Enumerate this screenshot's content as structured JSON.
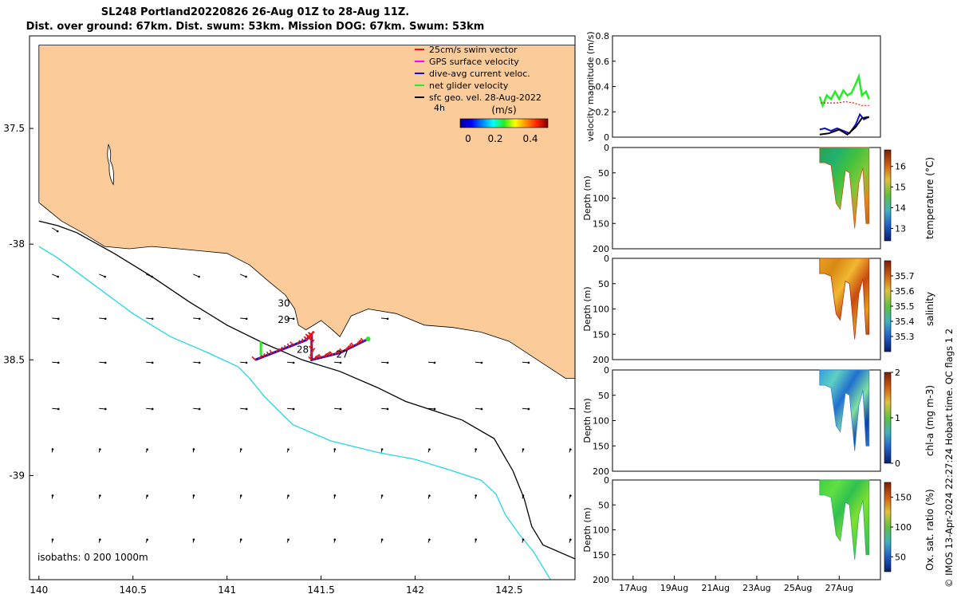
{
  "header": {
    "title_line1": "SL248 Portland20220826 26-Aug 01Z to 28-Aug 11Z.",
    "title_line2": "Dist. over ground: 67km. Dist. swum: 53km. Mission DOG: 67km. Swum: 53km"
  },
  "credit": "© IMOS 13-Apr-2024 22:27:24 Hobart time. QC flags 1  2",
  "colors": {
    "land": "#fbcc9a",
    "sea": "#ffffff",
    "isobath_200": "#000000",
    "isobath_1000": "#22d8e4",
    "swim": "#ee1111",
    "gps": "#ff00ff",
    "dive": "#1010cc",
    "net": "#22ee22",
    "geo": "#000000"
  },
  "chart_data": [
    {
      "type": "map",
      "name": "track-map",
      "xlim": [
        139.95,
        142.85
      ],
      "ylim": [
        -39.45,
        -37.1
      ],
      "x_ticks": [
        140,
        140.5,
        141,
        141.5,
        142,
        142.5
      ],
      "x_tick_labels": [
        "140",
        "140.5",
        "141",
        "141.5",
        "142",
        "142.5"
      ],
      "y_ticks": [
        -37.5,
        -38,
        -38.5,
        -39
      ],
      "y_tick_labels": [
        "37.5",
        "-38",
        "38.5",
        "-39"
      ],
      "legend": {
        "placement": "top-right",
        "items": [
          {
            "label": "25cm/s swim vector",
            "color": "#ee1111"
          },
          {
            "label": "GPS surface velocity",
            "color": "#ff00ff"
          },
          {
            "label": "dive-avg current veloc.",
            "color": "#1010cc"
          },
          {
            "label": "net glider velocity",
            "color": "#22ee22"
          },
          {
            "label": "sfc geo. vel. 28-Aug-2022",
            "color": "#000000"
          }
        ],
        "time_step_label": "4h"
      },
      "colorbar": {
        "title": "(m/s)",
        "range": [
          0,
          0.5
        ],
        "tick_labels": [
          "0",
          "0.2",
          "0.4"
        ]
      },
      "isobaths_label": "isobaths: 0   200  1000m",
      "day_labels": [
        {
          "text": "30",
          "lon": 141.27,
          "lat": -38.27
        },
        {
          "text": "29",
          "lon": 141.27,
          "lat": -38.34
        },
        {
          "text": "28",
          "lon": 141.37,
          "lat": -38.47
        },
        {
          "text": "27",
          "lon": 141.58,
          "lat": -38.49
        }
      ],
      "track": [
        [
          141.15,
          -38.5
        ],
        [
          141.42,
          -38.415
        ],
        [
          141.45,
          -38.39
        ],
        [
          141.45,
          -38.5
        ],
        [
          141.6,
          -38.47
        ],
        [
          141.75,
          -38.41
        ]
      ],
      "coastline": [
        [
          140.0,
          -37.14
        ],
        [
          140.0,
          -37.82
        ],
        [
          140.12,
          -37.9
        ],
        [
          140.23,
          -37.95
        ],
        [
          140.35,
          -38.01
        ],
        [
          140.48,
          -38.02
        ],
        [
          140.6,
          -38.01
        ],
        [
          140.74,
          -38.02
        ],
        [
          140.87,
          -38.03
        ],
        [
          141.0,
          -38.04
        ],
        [
          141.12,
          -38.09
        ],
        [
          141.22,
          -38.16
        ],
        [
          141.31,
          -38.22
        ],
        [
          141.36,
          -38.28
        ],
        [
          141.38,
          -38.35
        ],
        [
          141.42,
          -38.37
        ],
        [
          141.5,
          -38.33
        ],
        [
          141.56,
          -38.37
        ],
        [
          141.6,
          -38.4
        ],
        [
          141.66,
          -38.31
        ],
        [
          141.75,
          -38.28
        ],
        [
          141.9,
          -38.3
        ],
        [
          142.05,
          -38.35
        ],
        [
          142.2,
          -38.36
        ],
        [
          142.35,
          -38.38
        ],
        [
          142.5,
          -38.42
        ],
        [
          142.65,
          -38.5
        ],
        [
          142.8,
          -38.58
        ],
        [
          142.85,
          -38.58
        ],
        [
          142.85,
          -37.14
        ]
      ],
      "isobath_200": [
        [
          140.0,
          -37.9
        ],
        [
          140.1,
          -37.92
        ],
        [
          140.2,
          -37.95
        ],
        [
          140.4,
          -38.04
        ],
        [
          140.6,
          -38.14
        ],
        [
          140.8,
          -38.25
        ],
        [
          141.0,
          -38.35
        ],
        [
          141.2,
          -38.43
        ],
        [
          141.4,
          -38.5
        ],
        [
          141.6,
          -38.55
        ],
        [
          141.8,
          -38.62
        ],
        [
          141.95,
          -38.68
        ],
        [
          142.1,
          -38.72
        ],
        [
          142.25,
          -38.76
        ],
        [
          142.42,
          -38.84
        ],
        [
          142.52,
          -38.98
        ],
        [
          142.58,
          -39.1
        ],
        [
          142.62,
          -39.22
        ],
        [
          142.68,
          -39.3
        ],
        [
          142.85,
          -39.36
        ]
      ],
      "isobath_1000": [
        [
          140.0,
          -38.01
        ],
        [
          140.1,
          -38.06
        ],
        [
          140.25,
          -38.15
        ],
        [
          140.5,
          -38.3
        ],
        [
          140.7,
          -38.4
        ],
        [
          140.9,
          -38.47
        ],
        [
          141.06,
          -38.53
        ],
        [
          141.12,
          -38.58
        ],
        [
          141.2,
          -38.66
        ],
        [
          141.35,
          -38.78
        ],
        [
          141.55,
          -38.85
        ],
        [
          141.8,
          -38.9
        ],
        [
          142.0,
          -38.93
        ],
        [
          142.2,
          -38.98
        ],
        [
          142.35,
          -39.02
        ],
        [
          142.43,
          -39.08
        ],
        [
          142.48,
          -39.17
        ],
        [
          142.55,
          -39.25
        ],
        [
          142.63,
          -39.33
        ],
        [
          142.72,
          -39.45
        ]
      ],
      "current_arrows": {
        "lons": [
          140.07,
          140.32,
          140.57,
          140.82,
          141.07,
          141.32,
          141.57,
          141.82,
          142.07,
          142.32,
          142.57,
          142.82
        ],
        "lats": [
          -37.55,
          -37.74,
          -37.93,
          -38.13,
          -38.32,
          -38.51,
          -38.71,
          -38.9,
          -39.1,
          -39.29
        ]
      }
    },
    {
      "type": "line",
      "name": "velocity-magnitude",
      "ylabel": "velocity magnitude (m/s)",
      "ylim": [
        0,
        0.8
      ],
      "y_ticks": [
        0,
        0.2,
        0.4,
        0.6,
        0.8
      ],
      "y_tick_labels": [
        "0",
        "0.2",
        "0.4",
        "0.6",
        "0.8"
      ],
      "xlim": [
        16.0,
        29.0
      ],
      "series": [
        {
          "color": "#22ee22",
          "x": [
            26.05,
            26.2,
            26.4,
            26.6,
            26.8,
            27.0,
            27.2,
            27.4,
            27.6,
            27.8,
            27.95,
            28.1,
            28.3,
            28.45
          ],
          "y": [
            0.32,
            0.25,
            0.33,
            0.3,
            0.36,
            0.3,
            0.37,
            0.33,
            0.35,
            0.42,
            0.48,
            0.33,
            0.36,
            0.3
          ]
        },
        {
          "color": "#ee1111",
          "x": [
            26.1,
            26.5,
            26.9,
            27.3,
            27.7,
            28.1,
            28.45
          ],
          "y": [
            0.27,
            0.27,
            0.27,
            0.28,
            0.27,
            0.25,
            0.25
          ]
        },
        {
          "color": "#1010cc",
          "x": [
            26.05,
            26.3,
            26.6,
            26.9,
            27.2,
            27.5,
            27.8,
            28.0,
            28.2,
            28.45
          ],
          "y": [
            0.06,
            0.07,
            0.05,
            0.07,
            0.05,
            0.03,
            0.1,
            0.18,
            0.14,
            0.16
          ]
        },
        {
          "color": "#000000",
          "x": [
            26.05,
            26.5,
            27.0,
            27.4,
            27.8,
            28.1,
            28.45
          ],
          "y": [
            0.02,
            0.03,
            0.06,
            0.02,
            0.08,
            0.15,
            0.16
          ]
        }
      ]
    },
    {
      "type": "heatmap",
      "name": "temperature-section",
      "ylabel": "Depth (m)",
      "ylim": [
        0,
        200
      ],
      "y_ticks": [
        0,
        50,
        100,
        150,
        200
      ],
      "y_tick_labels": [
        "0",
        "50",
        "100",
        "150",
        "200"
      ],
      "xlim": [
        16.0,
        29.0
      ],
      "profile_depth": {
        "x": [
          26.05,
          26.3,
          26.6,
          26.85,
          27.05,
          27.3,
          27.5,
          27.75,
          27.95,
          28.15,
          28.3,
          28.45
        ],
        "max_depth": [
          30,
          30,
          35,
          110,
          122,
          45,
          50,
          160,
          70,
          40,
          150,
          150
        ]
      },
      "values_dominant": [
        14,
        15,
        16
      ],
      "colorbar": {
        "label": "temperature (°C)",
        "range": [
          12.4,
          16.8
        ],
        "ticks": [
          13,
          14,
          15,
          16
        ],
        "tick_labels": [
          "13",
          "14",
          "15",
          "16"
        ]
      }
    },
    {
      "type": "heatmap",
      "name": "salinity-section",
      "ylabel": "Depth (m)",
      "ylim": [
        0,
        200
      ],
      "y_ticks": [
        0,
        50,
        100,
        150,
        200
      ],
      "y_tick_labels": [
        "0",
        "50",
        "100",
        "150",
        "200"
      ],
      "xlim": [
        16.0,
        29.0
      ],
      "profile_depth": {
        "x": [
          26.05,
          26.3,
          26.6,
          26.85,
          27.05,
          27.3,
          27.5,
          27.75,
          27.95,
          28.15,
          28.3,
          28.45
        ],
        "max_depth": [
          30,
          30,
          35,
          110,
          122,
          45,
          50,
          160,
          70,
          40,
          150,
          150
        ]
      },
      "colorbar": {
        "label": "salinity",
        "range": [
          35.2,
          35.8
        ],
        "ticks": [
          35.3,
          35.4,
          35.5,
          35.6,
          35.7
        ],
        "tick_labels": [
          "35.3",
          "35.4",
          "35.5",
          "35.6",
          "35.7"
        ]
      }
    },
    {
      "type": "heatmap",
      "name": "chla-section",
      "ylabel": "Depth (m)",
      "ylim": [
        0,
        200
      ],
      "y_ticks": [
        0,
        50,
        100,
        150,
        200
      ],
      "y_tick_labels": [
        "0",
        "50",
        "100",
        "150",
        "200"
      ],
      "xlim": [
        16.0,
        29.0
      ],
      "profile_depth": {
        "x": [
          26.05,
          26.3,
          26.6,
          26.85,
          27.05,
          27.3,
          27.5,
          27.75,
          27.95,
          28.15,
          28.3,
          28.45
        ],
        "max_depth": [
          30,
          30,
          35,
          110,
          122,
          45,
          50,
          160,
          70,
          40,
          150,
          150
        ]
      },
      "colorbar": {
        "label": "chl-a (mg m-3)",
        "range": [
          0,
          2
        ],
        "ticks": [
          0,
          1,
          2
        ],
        "tick_labels": [
          "0",
          "1",
          "2"
        ]
      }
    },
    {
      "type": "heatmap",
      "name": "oxygen-section",
      "ylabel": "Depth (m)",
      "ylim": [
        0,
        200
      ],
      "y_ticks": [
        0,
        50,
        100,
        150,
        200
      ],
      "y_tick_labels": [
        "0",
        "50",
        "100",
        "150",
        "200"
      ],
      "xlim": [
        16.0,
        29.0
      ],
      "x_ticks": [
        17,
        19,
        21,
        23,
        25,
        27
      ],
      "x_tick_labels": [
        "17Aug",
        "19Aug",
        "21Aug",
        "23Aug",
        "25Aug",
        "27Aug"
      ],
      "profile_depth": {
        "x": [
          26.05,
          26.3,
          26.6,
          26.85,
          27.05,
          27.3,
          27.5,
          27.75,
          27.95,
          28.15,
          28.3,
          28.45
        ],
        "max_depth": [
          30,
          30,
          35,
          110,
          122,
          45,
          50,
          160,
          70,
          40,
          150,
          150
        ]
      },
      "colorbar": {
        "label": "Ox. sat. ratio (%)",
        "range": [
          25,
          175
        ],
        "ticks": [
          50,
          100,
          150
        ],
        "tick_labels": [
          "50",
          "100",
          "150"
        ]
      }
    }
  ]
}
